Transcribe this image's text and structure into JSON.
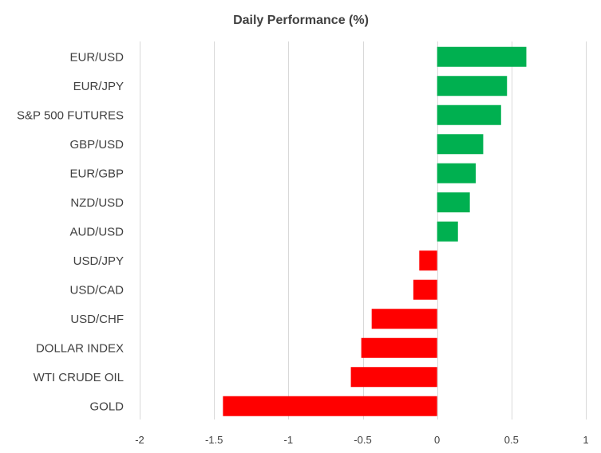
{
  "chart_data": {
    "type": "bar",
    "orientation": "horizontal",
    "title": "Daily Performance (%)",
    "xlabel": "",
    "ylabel": "",
    "xlim": [
      -2,
      1
    ],
    "xticks": [
      -2,
      -1.5,
      -1,
      -0.5,
      0,
      0.5,
      1
    ],
    "xtick_labels": [
      "-2",
      "-1.5",
      "-1",
      "-0.5",
      "0",
      "0.5",
      "1"
    ],
    "grid": true,
    "legend": "none",
    "categories": [
      "EUR/USD",
      "EUR/JPY",
      "S&P 500 FUTURES",
      "GBP/USD",
      "EUR/GBP",
      "NZD/USD",
      "AUD/USD",
      "USD/JPY",
      "USD/CAD",
      "USD/CHF",
      "DOLLAR INDEX",
      "WTI CRUDE OIL",
      "GOLD"
    ],
    "values": [
      0.6,
      0.47,
      0.43,
      0.31,
      0.26,
      0.22,
      0.14,
      -0.12,
      -0.16,
      -0.44,
      -0.51,
      -0.58,
      -1.44
    ],
    "colors": {
      "positive": "#00b050",
      "negative": "#ff0000",
      "grid": "#d9d9d9",
      "text": "#404040"
    }
  }
}
